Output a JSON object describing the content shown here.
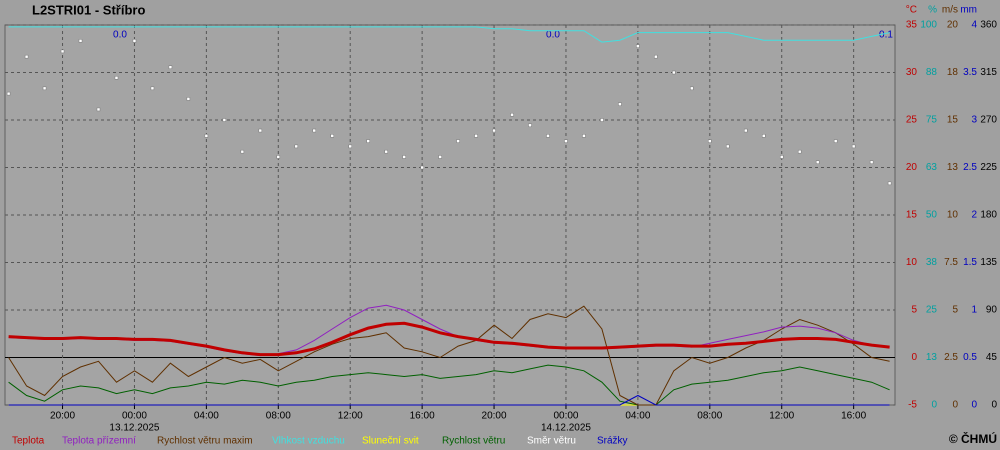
{
  "chart_data": {
    "type": "line",
    "title": "L2STRI01 - Stříbro",
    "copyright": "© ČHMÚ",
    "x": [
      -7,
      -6,
      -5,
      -4,
      -3,
      -2,
      -1,
      0,
      1,
      2,
      3,
      4,
      5,
      6,
      7,
      8,
      9,
      10,
      11,
      12,
      13,
      14,
      15,
      16,
      17,
      18,
      19,
      20,
      21,
      22,
      23,
      24,
      25,
      26,
      27,
      28,
      29,
      30,
      31,
      32,
      33,
      34,
      35,
      36,
      37,
      38,
      39,
      40,
      41,
      42
    ],
    "xlim": [
      -7.2,
      42.3
    ],
    "xticks": [
      {
        "value": -4,
        "label": "20:00"
      },
      {
        "value": 0,
        "label": "00:00"
      },
      {
        "value": 4,
        "label": "04:00"
      },
      {
        "value": 8,
        "label": "08:00"
      },
      {
        "value": 12,
        "label": "12:00"
      },
      {
        "value": 16,
        "label": "16:00"
      },
      {
        "value": 20,
        "label": "20:00"
      },
      {
        "value": 24,
        "label": "00:00"
      },
      {
        "value": 28,
        "label": "04:00"
      },
      {
        "value": 32,
        "label": "08:00"
      },
      {
        "value": 36,
        "label": "12:00"
      },
      {
        "value": 40,
        "label": "16:00"
      }
    ],
    "dates": [
      "13.12.2025",
      "14.12.2025"
    ],
    "precip_totals": [
      "0.0",
      "0.0",
      "0.1"
    ],
    "grid": true,
    "axes": [
      {
        "unit": "°C",
        "color": "#c00000",
        "lim": [
          -5,
          35
        ],
        "ticks": [
          -5,
          0,
          5,
          10,
          15,
          20,
          25,
          30,
          35
        ]
      },
      {
        "unit": "%",
        "color": "#00a0a0",
        "lim": [
          0,
          100
        ],
        "ticks": [
          0,
          {
            "value": 12.5,
            "label": "13"
          },
          25,
          {
            "value": 37.5,
            "label": "38"
          },
          50,
          {
            "value": 62.5,
            "label": "63"
          },
          75,
          {
            "value": 87.5,
            "label": "88"
          },
          100
        ]
      },
      {
        "unit": "m/s",
        "color": "#603000",
        "lim": [
          0,
          20
        ],
        "ticks": [
          0,
          2.5,
          5,
          7.5,
          10,
          {
            "value": 12.5,
            "label": "13"
          },
          15,
          {
            "value": 17.5,
            "label": "18"
          },
          20
        ]
      },
      {
        "unit": "mm",
        "color": "#0000c0",
        "lim": [
          0,
          4
        ],
        "ticks": [
          0,
          0.5,
          1,
          1.5,
          2,
          2.5,
          3,
          3.5,
          4
        ]
      },
      {
        "color": "#000000",
        "lim": [
          0,
          360
        ],
        "ticks": [
          0,
          45,
          90,
          135,
          180,
          225,
          270,
          315,
          360
        ]
      }
    ],
    "series": [
      {
        "name": "Teplota",
        "color": "#c00000",
        "axis": 0,
        "style": "thick-line",
        "values": [
          2.2,
          2.1,
          2.0,
          2.0,
          2.1,
          2.0,
          2.0,
          1.9,
          1.9,
          1.8,
          1.5,
          1.2,
          0.8,
          0.5,
          0.3,
          0.3,
          0.5,
          0.9,
          1.6,
          2.4,
          3.1,
          3.5,
          3.6,
          3.2,
          2.6,
          2.2,
          1.9,
          1.6,
          1.5,
          1.3,
          1.1,
          1.0,
          1.0,
          1.0,
          1.1,
          1.2,
          1.3,
          1.3,
          1.2,
          1.2,
          1.4,
          1.5,
          1.7,
          1.9,
          2.0,
          2.0,
          1.9,
          1.6,
          1.3,
          1.1
        ]
      },
      {
        "name": "Teplota přízemní",
        "color": "#9020c0",
        "axis": 0,
        "style": "line",
        "values": [
          2.1,
          2.0,
          1.9,
          1.9,
          2.0,
          1.9,
          1.9,
          1.8,
          1.8,
          1.7,
          1.4,
          1.1,
          0.7,
          0.4,
          0.2,
          0.4,
          0.8,
          1.8,
          3.0,
          4.2,
          5.2,
          5.5,
          5.0,
          4.0,
          3.0,
          2.2,
          1.8,
          1.5,
          1.4,
          1.2,
          1.0,
          0.9,
          0.9,
          0.9,
          1.0,
          1.1,
          1.2,
          1.2,
          1.1,
          1.5,
          1.9,
          2.3,
          2.7,
          3.2,
          3.3,
          3.1,
          2.6,
          1.8,
          1.3,
          1.0
        ]
      },
      {
        "name": "Rychlost větru maxim",
        "color": "#603000",
        "axis": 2,
        "style": "line",
        "values": [
          2.5,
          1.0,
          0.5,
          1.5,
          2.0,
          2.3,
          1.2,
          1.8,
          1.2,
          2.2,
          1.5,
          2.0,
          2.5,
          2.2,
          2.4,
          1.8,
          2.3,
          2.8,
          3.2,
          3.5,
          3.6,
          3.8,
          3.0,
          2.8,
          2.5,
          3.1,
          3.4,
          4.2,
          3.5,
          4.5,
          4.8,
          4.6,
          5.2,
          4.0,
          0.5,
          0.0,
          0.0,
          1.8,
          2.5,
          2.2,
          2.5,
          3.0,
          3.4,
          4.0,
          4.5,
          4.2,
          3.8,
          3.2,
          2.5,
          2.3
        ]
      },
      {
        "name": "Vlhkost vzduchu",
        "color": "#40e0e0",
        "axis": 1,
        "style": "line",
        "values": [
          99.5,
          99.5,
          99.5,
          99.5,
          99.5,
          99.5,
          99.5,
          99.5,
          99.5,
          99.5,
          99.5,
          99.5,
          99.5,
          99.5,
          99.5,
          99.5,
          99.5,
          99.5,
          99.5,
          99.5,
          99.5,
          99.5,
          99.5,
          99.5,
          99.5,
          99.5,
          99.5,
          99,
          99,
          98.5,
          98.5,
          98.5,
          98.5,
          95.5,
          96,
          98,
          98,
          98,
          98,
          98,
          98,
          97,
          96,
          96,
          96,
          96,
          96,
          96,
          97,
          98
        ]
      },
      {
        "name": "Sluneční svit",
        "color": "#ffff00",
        "axis": 1,
        "style": "line",
        "values": [
          0,
          0,
          0,
          0,
          0,
          0,
          0,
          0,
          0,
          0,
          0,
          0,
          0,
          0,
          0,
          0,
          0,
          0,
          0,
          0,
          0,
          0,
          0,
          0,
          0,
          0,
          0,
          0,
          0,
          0,
          0,
          0,
          0,
          0,
          0,
          0,
          0,
          0,
          0,
          0,
          0,
          0,
          0,
          0,
          0,
          0,
          0,
          0,
          0,
          0
        ]
      },
      {
        "name": "Rychlost větru",
        "color": "#006000",
        "axis": 2,
        "style": "line",
        "values": [
          1.2,
          0.5,
          0.2,
          0.8,
          1.0,
          0.9,
          0.6,
          0.8,
          0.6,
          0.9,
          1.0,
          1.2,
          1.1,
          1.3,
          1.2,
          1.0,
          1.2,
          1.3,
          1.5,
          1.6,
          1.7,
          1.6,
          1.5,
          1.6,
          1.4,
          1.5,
          1.6,
          1.8,
          1.7,
          1.9,
          2.1,
          2.0,
          1.8,
          1.2,
          0.2,
          0.0,
          0.0,
          0.8,
          1.1,
          1.2,
          1.3,
          1.5,
          1.7,
          1.8,
          2.0,
          1.8,
          1.6,
          1.4,
          1.2,
          0.8
        ]
      },
      {
        "name": "Směr větru",
        "color": "#ffffff",
        "axis": 4,
        "style": "dots",
        "values": [
          295,
          330,
          300,
          335,
          345,
          280,
          310,
          345,
          300,
          320,
          290,
          255,
          270,
          240,
          260,
          235,
          245,
          260,
          255,
          245,
          250,
          240,
          235,
          225,
          235,
          250,
          255,
          260,
          275,
          265,
          255,
          250,
          255,
          270,
          285,
          340,
          330,
          315,
          300,
          250,
          245,
          260,
          255,
          235,
          240,
          230,
          250,
          245,
          230,
          210
        ]
      },
      {
        "name": "Srážky",
        "color": "#0000c0",
        "axis": 3,
        "style": "line",
        "values": [
          0,
          0,
          0,
          0,
          0,
          0,
          0,
          0,
          0,
          0,
          0,
          0,
          0,
          0,
          0,
          0,
          0,
          0,
          0,
          0,
          0,
          0,
          0,
          0,
          0,
          0,
          0,
          0,
          0,
          0,
          0,
          0,
          0,
          0,
          0,
          0.1,
          0,
          0,
          0,
          0,
          0,
          0,
          0,
          0,
          0,
          0,
          0,
          0,
          0,
          0
        ]
      }
    ]
  }
}
